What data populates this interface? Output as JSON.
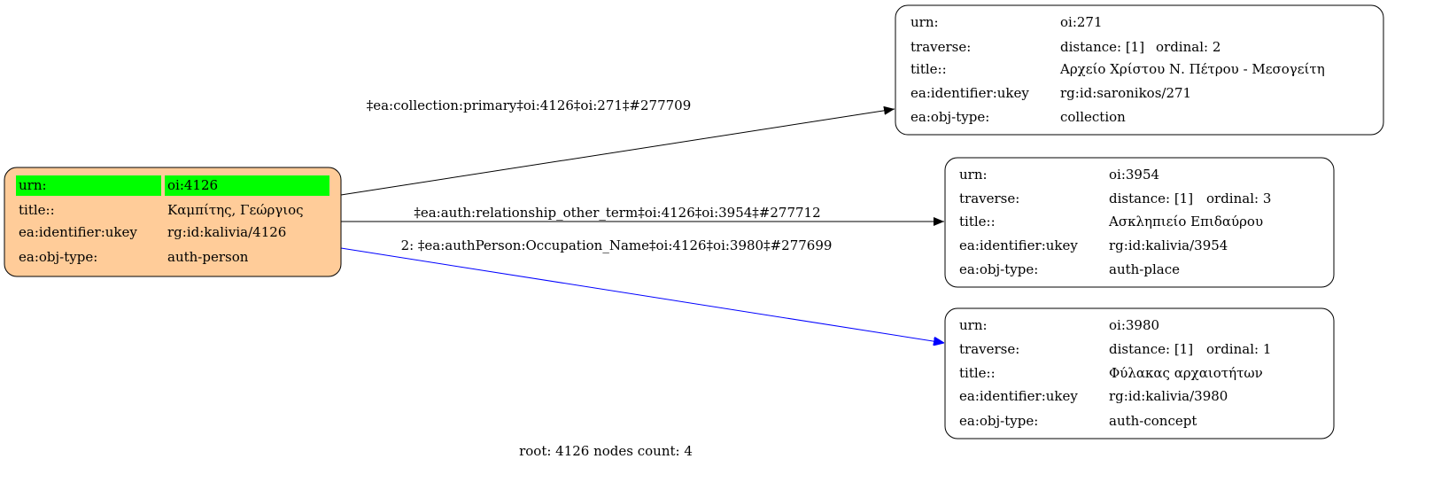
{
  "colors": {
    "root_fill": "#ffcc99",
    "highlight": "#00ff00",
    "node_fill": "#ffffff",
    "edge_default": "#000000",
    "edge_highlight": "#0000ff"
  },
  "nodes": {
    "root": {
      "rows": [
        {
          "key": "urn:",
          "value": "oi:4126"
        },
        {
          "key": "title::",
          "value": "Καμπίτης, Γεώργιος"
        },
        {
          "key": "ea:identifier:ukey",
          "value": "rg:id:kalivia/4126"
        },
        {
          "key": "ea:obj-type:",
          "value": "auth-person"
        }
      ]
    },
    "n271": {
      "urn_key": "urn:",
      "urn": "oi:271",
      "traverse_key": "traverse:",
      "distance": "distance: [1]",
      "ordinal": "ordinal: 2",
      "title_key": "title::",
      "title": "Αρχείο Χρίστου Ν. Πέτρου - Μεσογείτη",
      "ukey_key": "ea:identifier:ukey",
      "ukey": "rg:id:saronikos/271",
      "type_key": "ea:obj-type:",
      "type": "collection"
    },
    "n3954": {
      "urn_key": "urn:",
      "urn": "oi:3954",
      "traverse_key": "traverse:",
      "distance": "distance: [1]",
      "ordinal": "ordinal: 3",
      "title_key": "title::",
      "title": "Ασκληπιείο Επιδαύρου",
      "ukey_key": "ea:identifier:ukey",
      "ukey": "rg:id:kalivia/3954",
      "type_key": "ea:obj-type:",
      "type": "auth-place"
    },
    "n3980": {
      "urn_key": "urn:",
      "urn": "oi:3980",
      "traverse_key": "traverse:",
      "distance": "distance: [1]",
      "ordinal": "ordinal: 1",
      "title_key": "title::",
      "title": "Φύλακας αρχαιοτήτων",
      "ukey_key": "ea:identifier:ukey",
      "ukey": "rg:id:kalivia/3980",
      "type_key": "ea:obj-type:",
      "type": "auth-concept"
    }
  },
  "edges": [
    {
      "label": "‡ea:collection:primary‡oi:4126‡oi:271‡#277709"
    },
    {
      "label": "‡ea:auth:relationship_other_term‡oi:4126‡oi:3954‡#277712"
    },
    {
      "label": "2: ‡ea:authPerson:Occupation_Name‡oi:4126‡oi:3980‡#277699"
    }
  ],
  "footer": "root: 4126 nodes count: 4"
}
